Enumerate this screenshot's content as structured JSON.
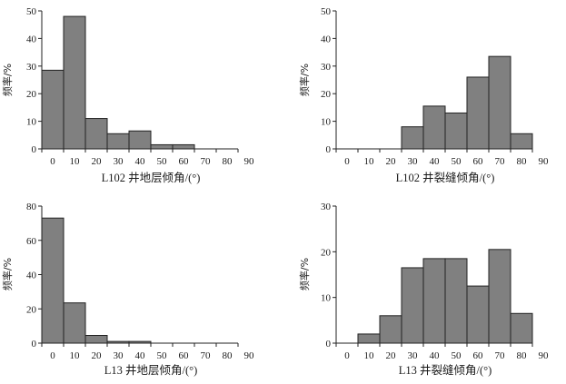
{
  "colors": {
    "bar_fill": "#808080",
    "bar_stroke": "#222222",
    "axis": "#222222"
  },
  "chart_data": [
    {
      "type": "bar",
      "xlabel": "L102 井地层倾角/(°)",
      "ylabel": "频率/%",
      "ylim": [
        0,
        50
      ],
      "yticks": [
        0,
        10,
        20,
        30,
        40,
        50
      ],
      "xticks": [
        0,
        10,
        20,
        30,
        40,
        50,
        60,
        70,
        80,
        90
      ],
      "bins": [
        [
          0,
          10
        ],
        [
          10,
          20
        ],
        [
          20,
          30
        ],
        [
          30,
          40
        ],
        [
          40,
          50
        ],
        [
          50,
          60
        ],
        [
          60,
          70
        ],
        [
          70,
          80
        ],
        [
          80,
          90
        ]
      ],
      "values": [
        28.5,
        48,
        11,
        5.5,
        6.5,
        1.5,
        1.5,
        0,
        0
      ],
      "grid": false
    },
    {
      "type": "bar",
      "xlabel": "L102 井裂缝倾角/(°)",
      "ylabel": "频率/%",
      "ylim": [
        0,
        50
      ],
      "yticks": [
        0,
        10,
        20,
        30,
        40,
        50
      ],
      "xticks": [
        0,
        10,
        20,
        30,
        40,
        50,
        60,
        70,
        80,
        90
      ],
      "bins": [
        [
          0,
          10
        ],
        [
          10,
          20
        ],
        [
          20,
          30
        ],
        [
          30,
          40
        ],
        [
          40,
          50
        ],
        [
          50,
          60
        ],
        [
          60,
          70
        ],
        [
          70,
          80
        ],
        [
          80,
          90
        ]
      ],
      "values": [
        0,
        0,
        0,
        8,
        15.5,
        13,
        26,
        33.5,
        5.5
      ],
      "grid": false
    },
    {
      "type": "bar",
      "xlabel": "L13 井地层倾角/(°)",
      "ylabel": "频率/%",
      "ylim": [
        0,
        80
      ],
      "yticks": [
        0,
        20,
        40,
        60,
        80
      ],
      "xticks": [
        0,
        10,
        20,
        30,
        40,
        50,
        60,
        70,
        80,
        90
      ],
      "bins": [
        [
          0,
          10
        ],
        [
          10,
          20
        ],
        [
          20,
          30
        ],
        [
          30,
          40
        ],
        [
          40,
          50
        ],
        [
          50,
          60
        ],
        [
          60,
          70
        ],
        [
          70,
          80
        ],
        [
          80,
          90
        ]
      ],
      "values": [
        73,
        23.5,
        4.5,
        1,
        1,
        0,
        0,
        0,
        0
      ],
      "grid": false
    },
    {
      "type": "bar",
      "xlabel": "L13 井裂缝倾角/(°)",
      "ylabel": "频率/%",
      "ylim": [
        0,
        30
      ],
      "yticks": [
        0,
        10,
        20,
        30
      ],
      "xticks": [
        0,
        10,
        20,
        30,
        40,
        50,
        60,
        70,
        80,
        90
      ],
      "bins": [
        [
          0,
          10
        ],
        [
          10,
          20
        ],
        [
          20,
          30
        ],
        [
          30,
          40
        ],
        [
          40,
          50
        ],
        [
          50,
          60
        ],
        [
          60,
          70
        ],
        [
          70,
          80
        ],
        [
          80,
          90
        ]
      ],
      "values": [
        0,
        2,
        6,
        16.5,
        18.5,
        18.5,
        12.5,
        20.5,
        6.5
      ],
      "grid": false
    }
  ]
}
